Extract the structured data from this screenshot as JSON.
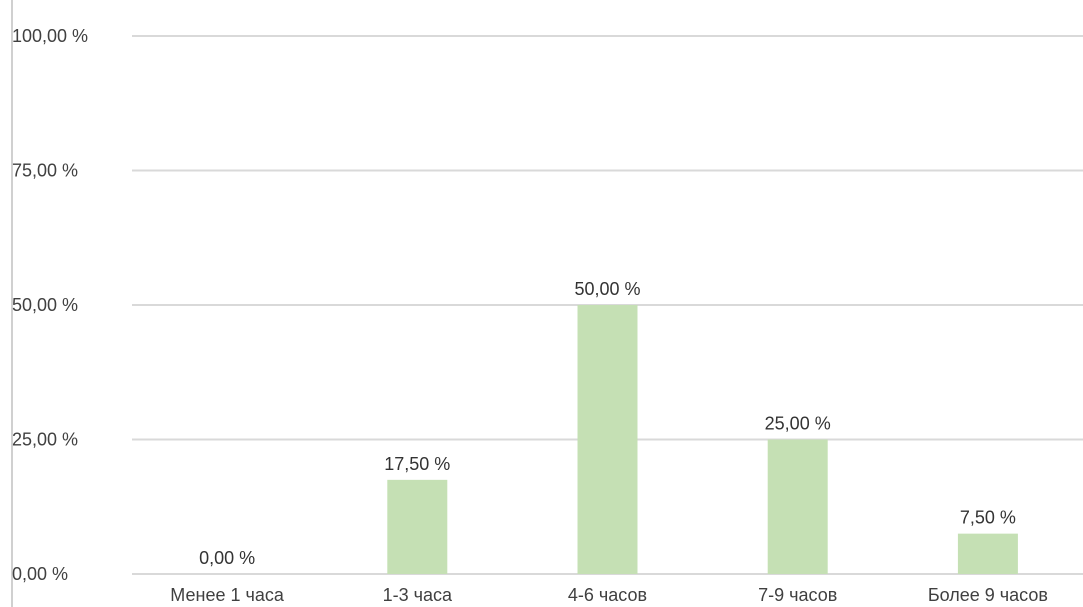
{
  "chart_data": {
    "type": "bar",
    "categories": [
      "Менее 1 часа",
      "1-3 часа",
      "4-6 часов",
      "7-9 часов",
      "Более 9 часов"
    ],
    "values": [
      0,
      17.5,
      50,
      25,
      7.5
    ],
    "value_labels": [
      "0,00 %",
      "17,50 %",
      "50,00 %",
      "25,00 %",
      "7,50 %"
    ],
    "y_ticks": [
      0,
      25,
      50,
      75,
      100
    ],
    "y_tick_labels": [
      "0,00 %",
      "25,00 %",
      "50,00 %",
      "75,00 %",
      "100,00 %"
    ],
    "ylim": [
      0,
      100
    ],
    "title": "",
    "xlabel": "",
    "ylabel": "",
    "grid": true,
    "legend": "none",
    "bar_color": "#c5e0b4",
    "grid_color": "#d9d9d9"
  }
}
